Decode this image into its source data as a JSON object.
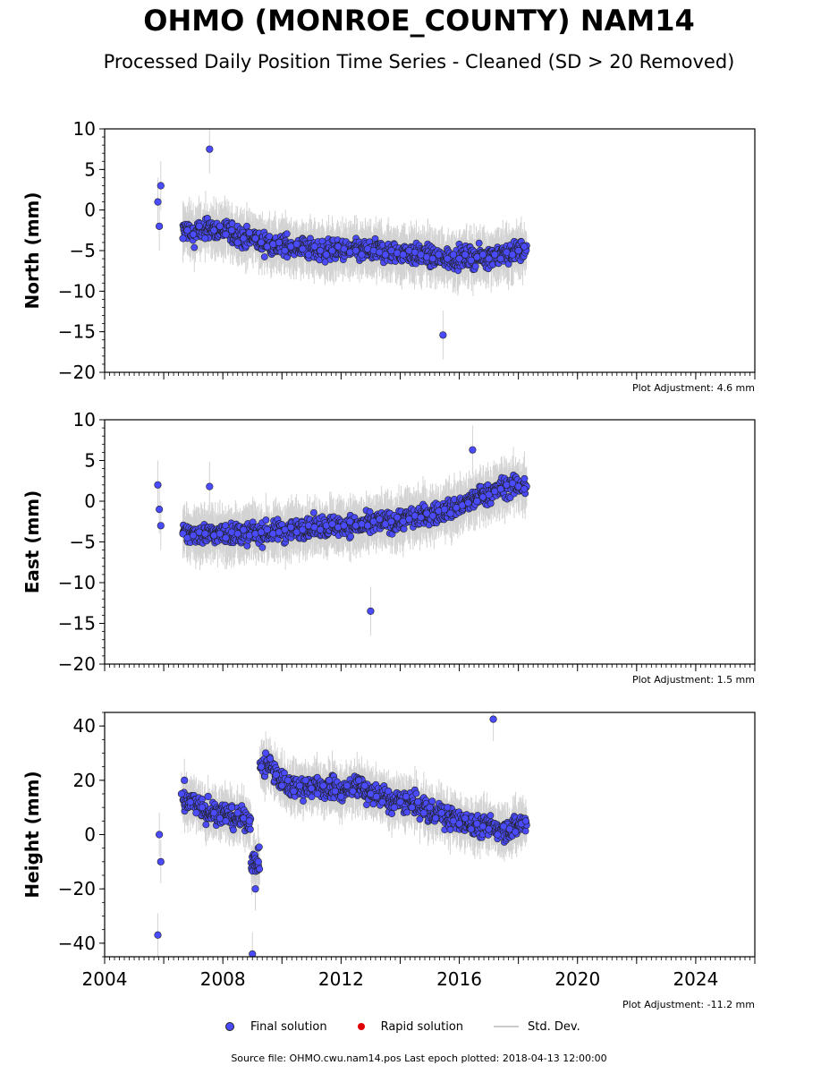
{
  "title": "OHMO (MONROE_COUNTY) NAM14",
  "subtitle": "Processed Daily Position Time Series - Cleaned (SD > 20 Removed)",
  "source": "Source file: OHMO.cwu.nam14.pos  Last epoch plotted: 2018-04-13 12:00:00",
  "legend": {
    "final": "Final solution",
    "rapid": "Rapid solution",
    "std": "Std. Dev."
  },
  "colors": {
    "final": "#4a4aff",
    "rapid": "#e00000",
    "std": "#cccccc"
  },
  "chart_data": [
    {
      "type": "scatter",
      "ylabel": "North (mm)",
      "ylim": [
        -20,
        10
      ],
      "yticks": [
        10,
        5,
        0,
        -5,
        -10,
        -15,
        -20
      ],
      "xlim": [
        2004,
        2026
      ],
      "adjustment": "Plot Adjustment: 4.6 mm",
      "series": [
        {
          "name": "Final solution",
          "x": [
            2005.8,
            2005.85,
            2005.9,
            2006.65,
            2006.8,
            2007.0,
            2007.2,
            2007.4,
            2007.55,
            2007.7,
            2007.9,
            2008.1,
            2008.3,
            2008.5,
            2008.7,
            2008.9,
            2009.1,
            2009.3,
            2009.5,
            2009.7,
            2009.9,
            2010.1,
            2010.3,
            2010.5,
            2010.7,
            2010.9,
            2011.1,
            2011.3,
            2011.5,
            2011.7,
            2011.9,
            2012.1,
            2012.3,
            2012.5,
            2012.7,
            2012.9,
            2013.1,
            2013.3,
            2013.5,
            2013.7,
            2013.9,
            2014.1,
            2014.3,
            2014.5,
            2014.7,
            2014.9,
            2015.1,
            2015.3,
            2015.45,
            2015.6,
            2015.8,
            2016.0,
            2016.2,
            2016.4,
            2016.6,
            2016.8,
            2017.0,
            2017.2,
            2017.4,
            2017.6,
            2017.8,
            2018.0,
            2018.2
          ],
          "y": [
            1.0,
            -2.0,
            3.0,
            -3.5,
            -2.5,
            -3.0,
            -2.0,
            -3.5,
            7.5,
            -2.5,
            -2.0,
            -3.0,
            -2.5,
            -4.0,
            -3.5,
            -2.8,
            -3.5,
            -4.0,
            -4.5,
            -4.2,
            -4.0,
            -5.0,
            -4.5,
            -4.2,
            -4.8,
            -5.5,
            -4.5,
            -5.0,
            -5.5,
            -5.0,
            -4.5,
            -4.8,
            -5.2,
            -5.0,
            -5.5,
            -4.8,
            -5.0,
            -5.2,
            -5.5,
            -5.0,
            -5.3,
            -5.5,
            -5.0,
            -5.2,
            -5.5,
            -5.8,
            -6.0,
            -5.5,
            -15.4,
            -6.0,
            -5.5,
            -6.0,
            -5.5,
            -6.2,
            -5.8,
            -5.5,
            -6.0,
            -5.5,
            -6.0,
            -5.2,
            -5.5,
            -5.0,
            -4.5
          ]
        },
        {
          "name": "Rapid solution",
          "x": [],
          "y": []
        }
      ]
    },
    {
      "type": "scatter",
      "ylabel": "East (mm)",
      "ylim": [
        -20,
        10
      ],
      "yticks": [
        10,
        5,
        0,
        -5,
        -10,
        -15,
        -20
      ],
      "xlim": [
        2004,
        2026
      ],
      "adjustment": "Plot Adjustment: 1.5 mm",
      "series": [
        {
          "name": "Final solution",
          "x": [
            2005.8,
            2005.85,
            2005.9,
            2006.65,
            2006.8,
            2007.0,
            2007.2,
            2007.4,
            2007.55,
            2007.7,
            2007.9,
            2008.1,
            2008.3,
            2008.5,
            2008.7,
            2008.9,
            2009.1,
            2009.3,
            2009.5,
            2009.7,
            2009.9,
            2010.1,
            2010.3,
            2010.5,
            2010.7,
            2010.9,
            2011.1,
            2011.3,
            2011.5,
            2011.7,
            2011.9,
            2012.1,
            2012.3,
            2012.5,
            2012.7,
            2012.9,
            2013.0,
            2013.1,
            2013.3,
            2013.5,
            2013.7,
            2013.9,
            2014.1,
            2014.3,
            2014.5,
            2014.7,
            2014.9,
            2015.1,
            2015.3,
            2015.5,
            2015.7,
            2015.9,
            2016.1,
            2016.3,
            2016.45,
            2016.6,
            2016.8,
            2017.0,
            2017.2,
            2017.4,
            2017.6,
            2017.8,
            2018.0,
            2018.2
          ],
          "y": [
            2.0,
            -1.0,
            -3.0,
            -4.0,
            -4.5,
            -4.2,
            -3.8,
            -4.0,
            1.8,
            -4.2,
            -4.0,
            -4.5,
            -3.8,
            -4.0,
            -3.5,
            -4.2,
            -4.0,
            -3.8,
            -3.5,
            -4.0,
            -3.8,
            -3.5,
            -3.2,
            -3.8,
            -3.5,
            -3.0,
            -3.2,
            -3.5,
            -3.0,
            -2.8,
            -3.2,
            -3.0,
            -2.5,
            -3.0,
            -2.8,
            -3.0,
            -13.5,
            -2.5,
            -2.2,
            -2.8,
            -2.5,
            -2.0,
            -2.5,
            -2.2,
            -1.8,
            -2.0,
            -1.5,
            -1.8,
            -1.2,
            -1.0,
            -1.5,
            -0.8,
            -0.5,
            -0.2,
            6.3,
            0.0,
            0.5,
            0.8,
            1.2,
            1.5,
            2.0,
            2.2,
            1.8,
            1.5
          ]
        },
        {
          "name": "Rapid solution",
          "x": [],
          "y": []
        }
      ]
    },
    {
      "type": "scatter",
      "ylabel": "Height (mm)",
      "ylim": [
        -45,
        45
      ],
      "yticks": [
        40,
        20,
        0,
        -20,
        -40
      ],
      "xlim": [
        2004,
        2026
      ],
      "xticks": [
        2004,
        2008,
        2012,
        2016,
        2020,
        2024
      ],
      "adjustment": "Plot Adjustment: -11.2 mm",
      "series": [
        {
          "name": "Final solution",
          "x": [
            2005.8,
            2005.85,
            2005.9,
            2006.6,
            2006.7,
            2006.9,
            2007.1,
            2007.3,
            2007.5,
            2007.7,
            2007.9,
            2008.1,
            2008.3,
            2008.5,
            2008.7,
            2008.9,
            2009.0,
            2009.1,
            2009.2,
            2009.3,
            2009.45,
            2009.6,
            2009.8,
            2010.0,
            2010.2,
            2010.4,
            2010.6,
            2010.8,
            2011.0,
            2011.2,
            2011.4,
            2011.6,
            2011.8,
            2012.0,
            2012.2,
            2012.4,
            2012.6,
            2012.8,
            2013.0,
            2013.2,
            2013.4,
            2013.6,
            2013.8,
            2014.0,
            2014.2,
            2014.4,
            2014.6,
            2014.8,
            2015.0,
            2015.2,
            2015.4,
            2015.6,
            2015.8,
            2016.0,
            2016.2,
            2016.4,
            2016.6,
            2016.8,
            2017.0,
            2017.15,
            2017.3,
            2017.5,
            2017.7,
            2017.9,
            2018.1,
            2018.25
          ],
          "y": [
            -37,
            0,
            -10,
            15,
            20,
            12,
            8,
            10,
            14,
            8,
            6,
            5,
            10,
            8,
            6,
            5,
            -44,
            -20,
            -10,
            25,
            30,
            28,
            22,
            18,
            20,
            16,
            18,
            20,
            17,
            15,
            18,
            20,
            16,
            14,
            18,
            16,
            20,
            18,
            15,
            14,
            12,
            16,
            10,
            12,
            14,
            10,
            12,
            8,
            10,
            6,
            8,
            10,
            5,
            4,
            6,
            2,
            4,
            3,
            2,
            42.5,
            0,
            3,
            2,
            1,
            4,
            5
          ]
        },
        {
          "name": "Rapid solution",
          "x": [],
          "y": []
        }
      ]
    }
  ]
}
